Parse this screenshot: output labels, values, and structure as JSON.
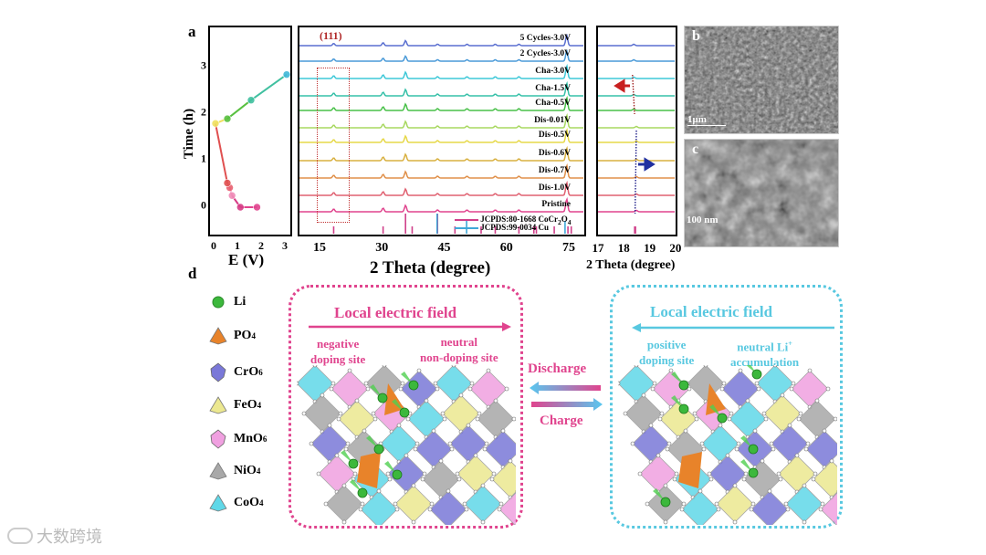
{
  "figure": {
    "panel_a_label": "a",
    "panel_b_label": "b",
    "panel_c_label": "c",
    "panel_d_label": "d",
    "sem_b_scale": "1μm",
    "sem_c_scale": "100 nm",
    "watermark": "大数跨境"
  },
  "chart_data": [
    {
      "type": "line",
      "title": "",
      "xlabel": "E (V)",
      "ylabel": "Time (h)",
      "xlim": [
        -0.2,
        3.1
      ],
      "ylim": [
        -0.8,
        3.9
      ],
      "xticks": [
        "0",
        "1",
        "2",
        "3"
      ],
      "yticks": [
        "0",
        "1",
        "2",
        "3"
      ],
      "points": [
        {
          "E": 1.75,
          "t": 0.0
        },
        {
          "E": 1.05,
          "t": 0.0
        },
        {
          "E": 0.7,
          "t": 0.25
        },
        {
          "E": 0.6,
          "t": 0.42
        },
        {
          "E": 0.5,
          "t": 0.52
        },
        {
          "E": 0.0,
          "t": 1.8
        },
        {
          "E": 0.5,
          "t": 1.9
        },
        {
          "E": 1.5,
          "t": 2.3
        },
        {
          "E": 3.0,
          "t": 2.85
        }
      ],
      "point_colors": [
        "#e0448e",
        "#d63c86",
        "#f08cb8",
        "#e86070",
        "#e05050",
        "#f0e060",
        "#58c040",
        "#40c0a0",
        "#40b8d8"
      ]
    },
    {
      "type": "line",
      "xlabel": "2 Theta (degree)",
      "xlim": [
        10,
        80
      ],
      "xticks": [
        "15",
        "30",
        "45",
        "60",
        "75"
      ],
      "annotation": "(111)",
      "series": [
        {
          "name": "5 Cycles-3.0V",
          "color": "#5a6fd0"
        },
        {
          "name": "2 Cycles-3.0V",
          "color": "#4a9ad8"
        },
        {
          "name": "Cha-3.0V",
          "color": "#3ec8d8"
        },
        {
          "name": "Cha-1.5V",
          "color": "#36c0a8"
        },
        {
          "name": "Cha-0.5V",
          "color": "#48c048"
        },
        {
          "name": "Dis-0.01V",
          "color": "#a8d860"
        },
        {
          "name": "Dis-0.5V",
          "color": "#e6d848"
        },
        {
          "name": "Dis-0.6V",
          "color": "#d8b040"
        },
        {
          "name": "Dis-0.7V",
          "color": "#e0904a"
        },
        {
          "name": "Dis-1.0V",
          "color": "#e06070"
        },
        {
          "name": "Pristine",
          "color": "#e0448e"
        }
      ],
      "peaks_deg": [
        18.4,
        30.3,
        35.7,
        43.4,
        50.5,
        57.3,
        63.0,
        74.5
      ],
      "reference": [
        {
          "name": "JCPDS:80-1668 CoCr2O4",
          "label_main": "JCPDS:80-1668 CoCr",
          "sub1": "2",
          "mid": "O",
          "sub2": "4",
          "color": "#d0408a",
          "peaks": [
            18.4,
            30.3,
            35.7,
            37.3,
            43.4,
            47.6,
            53.9,
            57.3,
            63.0,
            66.6,
            67.2,
            71.5,
            74.8,
            75.6
          ]
        },
        {
          "name": "JCPDS:99-0034 Cu",
          "label_main": "JCPDS:99-0034 Cu",
          "color": "#40a8d8",
          "peaks": [
            43.3,
            50.4,
            74.1
          ]
        }
      ]
    },
    {
      "type": "line",
      "xlabel": "2 Theta (degree)",
      "xlim": [
        17,
        20
      ],
      "xticks": [
        "17",
        "18",
        "19",
        "20"
      ],
      "peak_charge_deg": 18.35,
      "peak_discharge_deg": 18.45
    }
  ],
  "diagram": {
    "legend": [
      {
        "label": "Li",
        "sub": "",
        "color": "#3cb83c",
        "shape": "sphere"
      },
      {
        "label": "PO",
        "sub": "4",
        "color": "#e8832a",
        "shape": "tetra"
      },
      {
        "label": "CrO",
        "sub": "6",
        "color": "#7a78d8",
        "shape": "octa"
      },
      {
        "label": "FeO",
        "sub": "4",
        "color": "#ece890",
        "shape": "tetra"
      },
      {
        "label": "MnO",
        "sub": "6",
        "color": "#f0a0e0",
        "shape": "octa"
      },
      {
        "label": "NiO",
        "sub": "4",
        "color": "#a8a8a8",
        "shape": "tetra"
      },
      {
        "label": "CoO",
        "sub": "4",
        "color": "#60d8e8",
        "shape": "tetra"
      }
    ],
    "left": {
      "title": "Local electric field",
      "color": "#e0448e",
      "site1_line1": "negative",
      "site1_line2": "doping site",
      "site2_line1": "neutral",
      "site2_line2": "non-doping site"
    },
    "right": {
      "title": "Local electric field",
      "color": "#58c8e0",
      "site1_line1": "positive",
      "site1_line2": "doping site",
      "site2_line1": "neutral Li",
      "site2_sup": "+",
      "site2_line2": "accumulation"
    },
    "discharge_label": "Discharge",
    "charge_label": "Charge"
  }
}
